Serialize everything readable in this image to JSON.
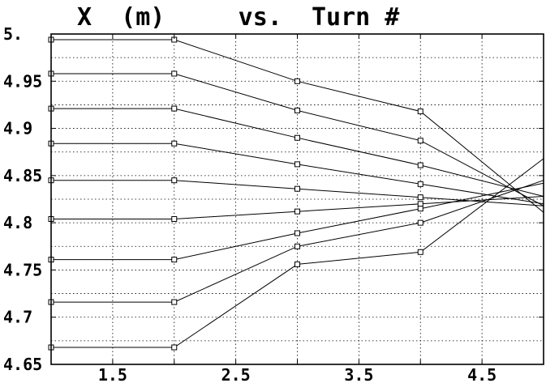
{
  "chart_data": {
    "type": "line",
    "title": "X  (m)     vs.  Turn #",
    "xlabel": "",
    "ylabel": "",
    "xlim": [
      1,
      5
    ],
    "ylim": [
      4.65,
      5.0
    ],
    "grid": true,
    "x_ticks": [
      {
        "value": 1.5,
        "label": "1.5"
      },
      {
        "value": 2.5,
        "label": "2.5"
      },
      {
        "value": 3.5,
        "label": "3.5"
      },
      {
        "value": 4.5,
        "label": "4.5"
      }
    ],
    "x_grid": [
      1.5,
      2,
      2.5,
      3,
      3.5,
      4,
      4.5
    ],
    "y_ticks": [
      {
        "value": 5.0,
        "label": "5."
      },
      {
        "value": 4.95,
        "label": "4.95"
      },
      {
        "value": 4.9,
        "label": "4.9"
      },
      {
        "value": 4.85,
        "label": "4.85"
      },
      {
        "value": 4.8,
        "label": "4.8"
      },
      {
        "value": 4.75,
        "label": "4.75"
      },
      {
        "value": 4.7,
        "label": "4.7"
      },
      {
        "value": 4.65,
        "label": "4.65"
      }
    ],
    "y_grid": [
      4.975,
      4.95,
      4.925,
      4.9,
      4.875,
      4.85,
      4.825,
      4.8,
      4.775,
      4.75,
      4.725,
      4.7,
      4.675
    ],
    "x": [
      1,
      2,
      3,
      4,
      5
    ],
    "series": [
      {
        "values": [
          4.994,
          4.994,
          4.95,
          4.918,
          4.811
        ]
      },
      {
        "values": [
          4.958,
          4.958,
          4.919,
          4.887,
          4.818
        ]
      },
      {
        "values": [
          4.921,
          4.921,
          4.89,
          4.861,
          4.828
        ]
      },
      {
        "values": [
          4.884,
          4.884,
          4.862,
          4.841,
          4.82
        ]
      },
      {
        "values": [
          4.845,
          4.845,
          4.836,
          4.827,
          4.818
        ]
      },
      {
        "values": [
          4.804,
          4.804,
          4.812,
          4.82,
          4.828
        ]
      },
      {
        "values": [
          4.761,
          4.761,
          4.789,
          4.815,
          4.842
        ]
      },
      {
        "values": [
          4.716,
          4.716,
          4.775,
          4.8,
          4.845
        ]
      },
      {
        "values": [
          4.668,
          4.668,
          4.756,
          4.769,
          4.868
        ]
      }
    ]
  }
}
